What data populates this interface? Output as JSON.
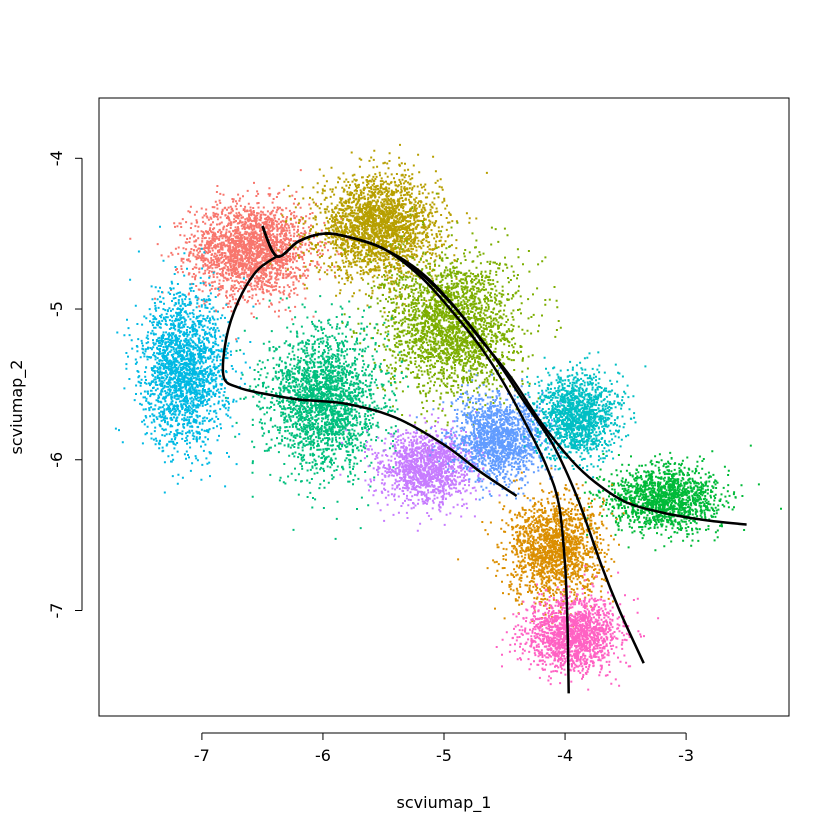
{
  "chart_data": {
    "type": "scatter",
    "title": "",
    "xlabel": "scviumap_1",
    "ylabel": "scviumap_2",
    "xlim": [
      -7.85,
      -2.15
    ],
    "ylim": [
      -7.7,
      -3.6
    ],
    "xticks": [
      -7,
      -6,
      -5,
      -4,
      -3
    ],
    "yticks": [
      -4,
      -5,
      -6,
      -7
    ],
    "grid": false,
    "legend": "none",
    "clusters": [
      {
        "color": "#F8766D",
        "center": [
          -6.6,
          -4.6
        ],
        "spread": [
          0.45,
          0.28
        ],
        "n": 2200
      },
      {
        "color": "#B79F00",
        "center": [
          -5.55,
          -4.45
        ],
        "spread": [
          0.45,
          0.3
        ],
        "n": 2400
      },
      {
        "color": "#7CAE00",
        "center": [
          -4.95,
          -5.1
        ],
        "spread": [
          0.5,
          0.42
        ],
        "n": 2400
      },
      {
        "color": "#00B9E3",
        "center": [
          -7.15,
          -5.4
        ],
        "spread": [
          0.32,
          0.45
        ],
        "n": 2100
      },
      {
        "color": "#00BF7D",
        "center": [
          -6.0,
          -5.6
        ],
        "spread": [
          0.42,
          0.42
        ],
        "n": 2300
      },
      {
        "color": "#C77CFF",
        "center": [
          -5.15,
          -6.05
        ],
        "spread": [
          0.35,
          0.22
        ],
        "n": 1400
      },
      {
        "color": "#619CFF",
        "center": [
          -4.55,
          -5.85
        ],
        "spread": [
          0.35,
          0.25
        ],
        "n": 1500
      },
      {
        "color": "#00BFC4",
        "center": [
          -3.9,
          -5.7
        ],
        "spread": [
          0.3,
          0.25
        ],
        "n": 1400
      },
      {
        "color": "#00BA38",
        "center": [
          -3.2,
          -6.25
        ],
        "spread": [
          0.42,
          0.2
        ],
        "n": 1500
      },
      {
        "color": "#DB8E00",
        "center": [
          -4.1,
          -6.6
        ],
        "spread": [
          0.35,
          0.32
        ],
        "n": 1700
      },
      {
        "color": "#FF61C3",
        "center": [
          -3.95,
          -7.15
        ],
        "spread": [
          0.35,
          0.22
        ],
        "n": 1600
      }
    ],
    "curves": [
      {
        "points": [
          [
            -6.5,
            -4.45
          ],
          [
            -6.38,
            -4.65
          ],
          [
            -6.2,
            -4.55
          ],
          [
            -6.0,
            -4.5
          ],
          [
            -5.8,
            -4.52
          ],
          [
            -5.5,
            -4.6
          ],
          [
            -5.2,
            -4.75
          ],
          [
            -4.95,
            -4.95
          ],
          [
            -4.7,
            -5.2
          ],
          [
            -4.45,
            -5.45
          ],
          [
            -4.2,
            -5.75
          ],
          [
            -3.95,
            -6.0
          ],
          [
            -3.75,
            -6.15
          ],
          [
            -3.5,
            -6.28
          ],
          [
            -3.2,
            -6.35
          ],
          [
            -2.85,
            -6.4
          ],
          [
            -2.5,
            -6.43
          ]
        ]
      },
      {
        "points": [
          [
            -6.5,
            -4.45
          ],
          [
            -6.38,
            -4.65
          ],
          [
            -6.2,
            -4.55
          ],
          [
            -6.0,
            -4.5
          ],
          [
            -5.8,
            -4.52
          ],
          [
            -5.5,
            -4.6
          ],
          [
            -5.2,
            -4.78
          ],
          [
            -4.95,
            -5.0
          ],
          [
            -4.7,
            -5.25
          ],
          [
            -4.5,
            -5.5
          ],
          [
            -4.3,
            -5.8
          ],
          [
            -4.15,
            -6.05
          ],
          [
            -4.05,
            -6.3
          ],
          [
            -4.0,
            -6.7
          ],
          [
            -3.98,
            -7.1
          ],
          [
            -3.97,
            -7.55
          ]
        ]
      },
      {
        "points": [
          [
            -6.5,
            -4.45
          ],
          [
            -6.38,
            -4.65
          ],
          [
            -6.2,
            -4.55
          ],
          [
            -6.0,
            -4.5
          ],
          [
            -5.8,
            -4.52
          ],
          [
            -5.5,
            -4.6
          ],
          [
            -5.2,
            -4.76
          ],
          [
            -4.9,
            -5.0
          ],
          [
            -4.6,
            -5.3
          ],
          [
            -4.35,
            -5.6
          ],
          [
            -4.1,
            -5.9
          ],
          [
            -3.9,
            -6.25
          ],
          [
            -3.7,
            -6.7
          ],
          [
            -3.55,
            -7.0
          ],
          [
            -3.35,
            -7.35
          ]
        ]
      },
      {
        "points": [
          [
            -6.38,
            -4.65
          ],
          [
            -6.55,
            -4.75
          ],
          [
            -6.7,
            -4.95
          ],
          [
            -6.8,
            -5.2
          ],
          [
            -6.82,
            -5.45
          ],
          [
            -6.7,
            -5.52
          ],
          [
            -6.5,
            -5.56
          ],
          [
            -6.2,
            -5.6
          ],
          [
            -5.8,
            -5.63
          ],
          [
            -5.4,
            -5.72
          ],
          [
            -5.0,
            -5.9
          ],
          [
            -4.7,
            -6.08
          ],
          [
            -4.4,
            -6.24
          ]
        ]
      }
    ]
  }
}
